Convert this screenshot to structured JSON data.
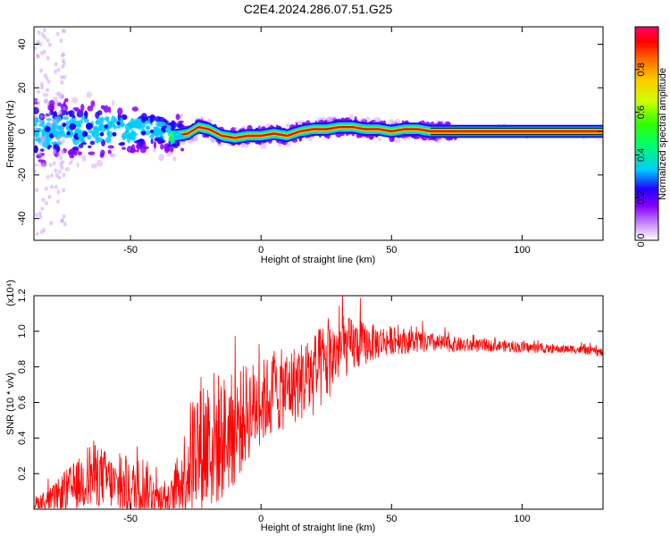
{
  "figure": {
    "title": "C2E4.2024.286.07.51.G25"
  },
  "chart_data": [
    {
      "type": "heatmap",
      "title": "C2E4.2024.286.07.51.G25",
      "xlabel": "Height of straight line (km)",
      "ylabel": "Frequency (Hz)",
      "xlim": [
        -87,
        131
      ],
      "ylim": [
        -50,
        48
      ],
      "x_ticks": [
        -50,
        0,
        50,
        100
      ],
      "y_ticks": [
        -40,
        -20,
        0,
        20,
        40
      ],
      "colorbar": {
        "label": "Normalized spectral amplitude",
        "range": [
          0,
          1
        ],
        "ticks": [
          0.0,
          0.2,
          0.4,
          0.6,
          0.8
        ],
        "colormap": [
          "#ffffff",
          "#cc99ff",
          "#8800ff",
          "#2200ff",
          "#00ccff",
          "#00ff66",
          "#33ff00",
          "#ccff00",
          "#ffcc00",
          "#ff6600",
          "#ff0000",
          "#ff0066"
        ]
      },
      "ridge": {
        "description_points_x": [
          -87,
          -60,
          -40,
          -33,
          -28,
          -24,
          -20,
          -15,
          -10,
          -5,
          0,
          5,
          10,
          15,
          20,
          25,
          30,
          35,
          40,
          45,
          50,
          55,
          60,
          65,
          70,
          80,
          100,
          131
        ],
        "description_points_y": [
          0,
          1,
          1,
          -2,
          -1,
          2,
          1,
          -2,
          -3,
          -2,
          -2,
          -1,
          -2,
          0,
          1,
          1,
          2,
          2,
          1,
          1,
          0,
          1,
          1,
          0,
          0,
          0,
          0,
          0
        ]
      },
      "grid": false
    },
    {
      "type": "line",
      "xlabel": "Height of straight line (km)",
      "ylabel": "SNR (10 * v/v)",
      "y_multiplier": "(x10⁴)",
      "xlim": [
        -87,
        131
      ],
      "ylim": [
        0,
        1.2
      ],
      "x_ticks": [
        -50,
        0,
        50,
        100
      ],
      "y_ticks": [
        0.2,
        0.4,
        0.6,
        0.8,
        1.0,
        1.2
      ],
      "series": [
        {
          "color": "#ff0000",
          "envelope_x": [
            -87,
            -80,
            -75,
            -70,
            -65,
            -60,
            -55,
            -50,
            -45,
            -40,
            -35,
            -30,
            -25,
            -20,
            -15,
            -10,
            -5,
            0,
            5,
            10,
            15,
            20,
            25,
            30,
            35,
            40,
            45,
            50,
            60,
            70,
            80,
            90,
            100,
            110,
            120,
            131
          ],
          "envelope_mean": [
            0.03,
            0.05,
            0.1,
            0.14,
            0.2,
            0.18,
            0.12,
            0.1,
            0.14,
            0.07,
            0.05,
            0.18,
            0.35,
            0.38,
            0.4,
            0.45,
            0.55,
            0.6,
            0.65,
            0.68,
            0.72,
            0.75,
            0.82,
            0.9,
            0.92,
            0.93,
            0.94,
            0.95,
            0.94,
            0.93,
            0.92,
            0.92,
            0.91,
            0.9,
            0.9,
            0.88
          ],
          "envelope_spread": [
            0.05,
            0.1,
            0.15,
            0.18,
            0.25,
            0.2,
            0.18,
            0.2,
            0.22,
            0.12,
            0.1,
            0.3,
            0.5,
            0.55,
            0.45,
            0.4,
            0.35,
            0.3,
            0.3,
            0.28,
            0.28,
            0.3,
            0.3,
            0.22,
            0.2,
            0.15,
            0.12,
            0.1,
            0.08,
            0.06,
            0.05,
            0.04,
            0.04,
            0.03,
            0.03,
            0.03
          ]
        }
      ],
      "grid": false
    }
  ]
}
